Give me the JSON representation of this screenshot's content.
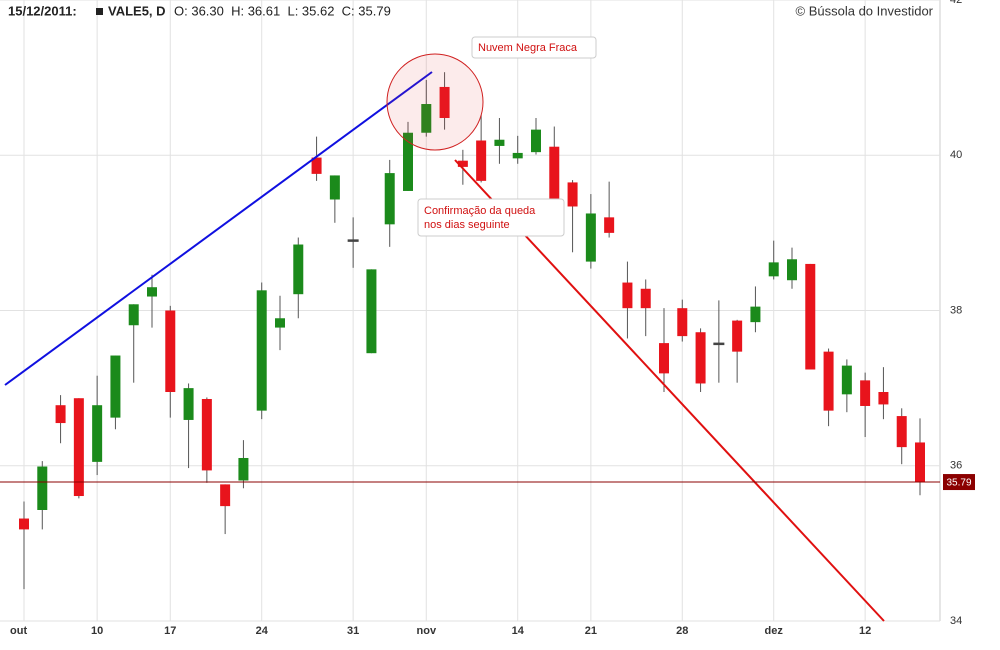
{
  "header": {
    "date": "15/12/2011:",
    "symbol": "VALE5, D",
    "quote": "O: 36.30  H: 36.61  L: 35.62  C: 35.79",
    "copyright": "© Bússola do Investidor"
  },
  "annotations": {
    "pattern": "Nuvem Negra Fraca",
    "confirm_line1": "Confirmação da queda",
    "confirm_line2": "nos dias seguinte"
  },
  "chart_data": {
    "type": "candlestick",
    "categories": [
      "out",
      null,
      null,
      null,
      "10",
      null,
      null,
      null,
      "17",
      null,
      null,
      null,
      null,
      "24",
      null,
      null,
      null,
      null,
      "31",
      null,
      null,
      null,
      "nov",
      null,
      null,
      null,
      null,
      "14",
      null,
      null,
      null,
      "21",
      null,
      null,
      null,
      null,
      "28",
      null,
      null,
      null,
      null,
      "dez",
      null,
      null,
      null,
      null,
      "12",
      null,
      null,
      null
    ],
    "open": [
      35.32,
      35.43,
      36.78,
      36.87,
      36.05,
      36.62,
      37.81,
      38.18,
      38.0,
      36.59,
      36.86,
      35.76,
      35.81,
      36.71,
      37.78,
      38.21,
      39.97,
      39.43,
      38.91,
      37.45,
      39.11,
      39.54,
      40.29,
      40.88,
      39.93,
      40.19,
      40.12,
      39.96,
      40.04,
      40.11,
      39.65,
      38.63,
      39.2,
      38.36,
      38.28,
      37.58,
      38.03,
      37.72,
      37.58,
      37.87,
      37.85,
      38.44,
      38.39,
      38.6,
      37.47,
      36.92,
      37.1,
      36.95,
      36.64,
      36.3
    ],
    "high": [
      35.54,
      36.06,
      36.91,
      36.87,
      37.16,
      37.42,
      38.08,
      38.46,
      38.06,
      37.06,
      36.88,
      35.76,
      36.33,
      38.36,
      38.19,
      38.94,
      40.24,
      39.74,
      39.2,
      38.53,
      39.94,
      40.43,
      40.97,
      41.07,
      40.07,
      40.52,
      40.48,
      40.25,
      40.48,
      40.37,
      39.68,
      39.5,
      39.66,
      38.63,
      38.4,
      38.03,
      38.14,
      37.77,
      38.13,
      37.88,
      38.31,
      38.9,
      38.81,
      38.6,
      37.51,
      37.37,
      37.2,
      37.27,
      36.74,
      36.61
    ],
    "low": [
      34.41,
      35.18,
      36.29,
      35.58,
      35.88,
      36.47,
      37.07,
      37.78,
      36.62,
      35.97,
      35.78,
      35.12,
      35.71,
      36.6,
      37.49,
      37.9,
      39.67,
      39.13,
      38.55,
      37.45,
      38.82,
      39.54,
      40.24,
      40.33,
      39.62,
      39.65,
      39.89,
      39.89,
      40.01,
      39.35,
      38.75,
      38.54,
      38.94,
      37.64,
      37.67,
      36.95,
      37.6,
      36.95,
      37.07,
      37.07,
      37.72,
      38.4,
      38.28,
      37.24,
      36.51,
      36.69,
      36.37,
      36.6,
      36.02,
      35.62
    ],
    "close": [
      35.18,
      35.99,
      36.55,
      35.61,
      36.78,
      37.42,
      38.08,
      38.3,
      36.95,
      37.0,
      35.94,
      35.48,
      36.1,
      38.26,
      37.9,
      38.85,
      39.76,
      39.74,
      38.91,
      38.53,
      39.77,
      40.29,
      40.66,
      40.48,
      39.85,
      39.67,
      40.2,
      40.03,
      40.33,
      39.44,
      39.34,
      39.25,
      39.0,
      38.03,
      38.03,
      37.19,
      37.67,
      37.06,
      37.58,
      37.47,
      38.05,
      38.62,
      38.66,
      37.24,
      36.71,
      37.29,
      36.77,
      36.79,
      36.24,
      35.79
    ],
    "up_color": "#1b8a1b",
    "down_color": "#e8141c",
    "flat_color": "#444444",
    "ylim": [
      34,
      42
    ],
    "yticks": [
      34,
      36,
      38,
      40,
      42
    ],
    "grid": true,
    "last_price": 35.79,
    "last_price_color": "#8b0000"
  }
}
